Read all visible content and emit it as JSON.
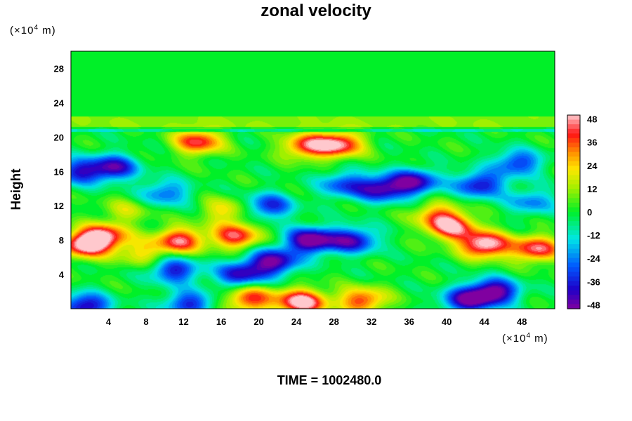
{
  "chart_data": {
    "type": "heatmap",
    "title": "zonal velocity",
    "ylabel": "Height",
    "xlabel": "",
    "x_unit_prefix": "(×10",
    "x_unit_exp": "4",
    "x_unit_suffix": " m)",
    "y_unit_prefix": "(×10",
    "y_unit_exp": "4",
    "y_unit_suffix": " m)",
    "xlim": [
      0,
      51.5
    ],
    "ylim": [
      0,
      30
    ],
    "x_ticks": [
      4,
      8,
      12,
      16,
      20,
      24,
      28,
      32,
      36,
      40,
      44,
      48
    ],
    "y_ticks": [
      4,
      8,
      12,
      16,
      20,
      24,
      28
    ],
    "colorbar": {
      "range": [
        -50,
        50
      ],
      "ticks": [
        48,
        36,
        24,
        12,
        0,
        -12,
        -24,
        -36,
        -48
      ]
    },
    "features": [
      {
        "x": 1.5,
        "y": 7.5,
        "value": 50
      },
      {
        "x": 3.5,
        "y": 8.5,
        "value": 42
      },
      {
        "x": 7.5,
        "y": 6.5,
        "value": 20
      },
      {
        "x": 11.5,
        "y": 8.0,
        "value": 44
      },
      {
        "x": 17.5,
        "y": 8.5,
        "value": 42
      },
      {
        "x": 13.5,
        "y": 19.5,
        "value": 42
      },
      {
        "x": 28.5,
        "y": 19.2,
        "value": 46
      },
      {
        "x": 25.0,
        "y": 19.0,
        "value": 38
      },
      {
        "x": 24.5,
        "y": 0.8,
        "value": 55
      },
      {
        "x": 19.0,
        "y": 1.2,
        "value": 40
      },
      {
        "x": 31.0,
        "y": 1.0,
        "value": 38
      },
      {
        "x": 44.0,
        "y": 7.5,
        "value": 55
      },
      {
        "x": 40.5,
        "y": 9.5,
        "value": 44
      },
      {
        "x": 49.5,
        "y": 7.0,
        "value": 45
      },
      {
        "x": 39.0,
        "y": 11.0,
        "value": 28
      },
      {
        "x": 25.5,
        "y": 8.0,
        "value": -55
      },
      {
        "x": 21.5,
        "y": 5.5,
        "value": -50
      },
      {
        "x": 18.0,
        "y": 4.0,
        "value": -40
      },
      {
        "x": 30.0,
        "y": 8.0,
        "value": -42
      },
      {
        "x": 33.0,
        "y": 14.0,
        "value": -42
      },
      {
        "x": 36.5,
        "y": 14.8,
        "value": -45
      },
      {
        "x": 29.0,
        "y": 14.5,
        "value": -30
      },
      {
        "x": 4.5,
        "y": 16.5,
        "value": -42
      },
      {
        "x": 0.8,
        "y": 16.0,
        "value": -35
      },
      {
        "x": 21.0,
        "y": 12.0,
        "value": -36
      },
      {
        "x": 43.5,
        "y": 14.5,
        "value": -40
      },
      {
        "x": 47.5,
        "y": 17.0,
        "value": -34
      },
      {
        "x": 45.0,
        "y": 2.0,
        "value": -52
      },
      {
        "x": 42.0,
        "y": 1.0,
        "value": -42
      },
      {
        "x": 1.5,
        "y": 0.3,
        "value": -45
      },
      {
        "x": 12.5,
        "y": 0.6,
        "value": -36
      },
      {
        "x": 11.0,
        "y": 4.5,
        "value": -38
      },
      {
        "x": 10.0,
        "y": 13.5,
        "value": -28
      },
      {
        "x": 49.0,
        "y": 12.5,
        "value": -24
      },
      {
        "x": 16.5,
        "y": 11.5,
        "value": 22
      },
      {
        "x": 6.0,
        "y": 11.5,
        "value": 15
      }
    ]
  },
  "footer": {
    "time_label": "TIME = 1002480.0"
  }
}
